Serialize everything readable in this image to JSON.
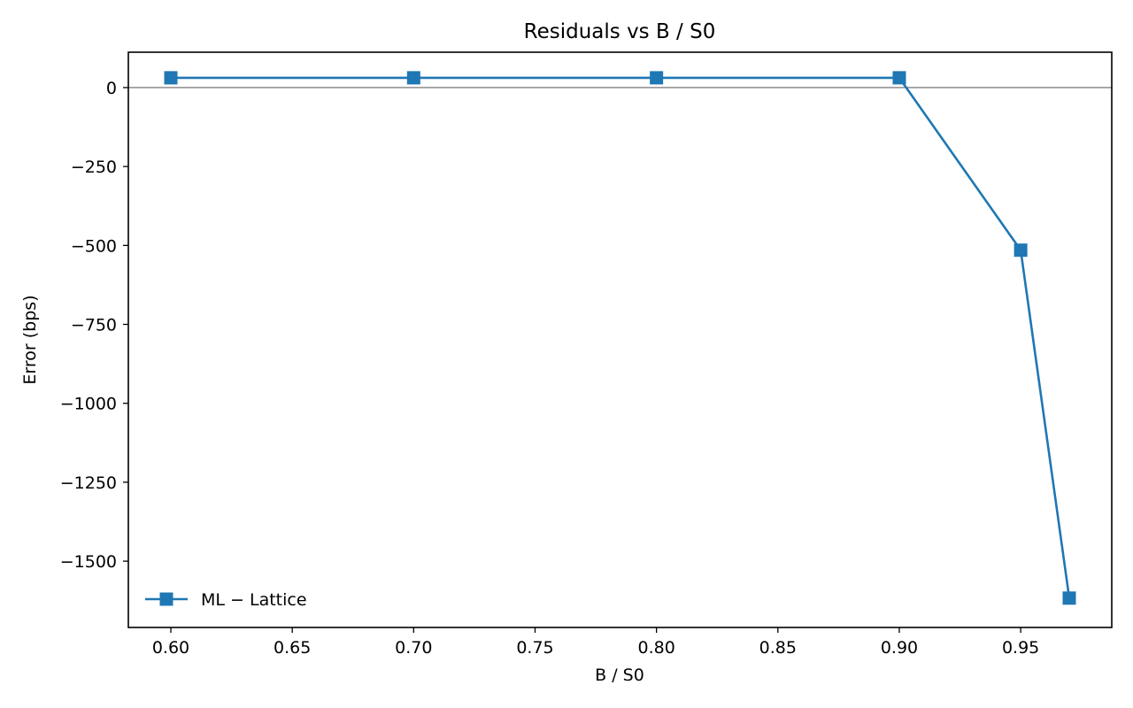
{
  "chart_data": {
    "type": "line",
    "title": "Residuals vs B / S0",
    "xlabel": "B / S0",
    "ylabel": "Error (bps)",
    "xlim": [
      0.5825,
      0.9875
    ],
    "ylim": [
      -1710,
      112
    ],
    "xticks": [
      0.6,
      0.65,
      0.7,
      0.75,
      0.8,
      0.85,
      0.9,
      0.95
    ],
    "xtick_labels": [
      "0.60",
      "0.65",
      "0.70",
      "0.75",
      "0.80",
      "0.85",
      "0.90",
      "0.95"
    ],
    "yticks": [
      0,
      -250,
      -500,
      -750,
      -1000,
      -1250,
      -1500
    ],
    "ytick_labels": [
      "0",
      "−250",
      "−500",
      "−750",
      "−1000",
      "−1250",
      "−1500"
    ],
    "grid": false,
    "reference_line": 0,
    "legend_position": "lower-left",
    "series": [
      {
        "name": "ML − Lattice",
        "marker": "square",
        "color": "#1f77b4",
        "x": [
          0.6,
          0.7,
          0.8,
          0.9,
          0.95,
          0.97
        ],
        "y": [
          31,
          31,
          31,
          31,
          -515,
          -1617
        ]
      }
    ]
  }
}
